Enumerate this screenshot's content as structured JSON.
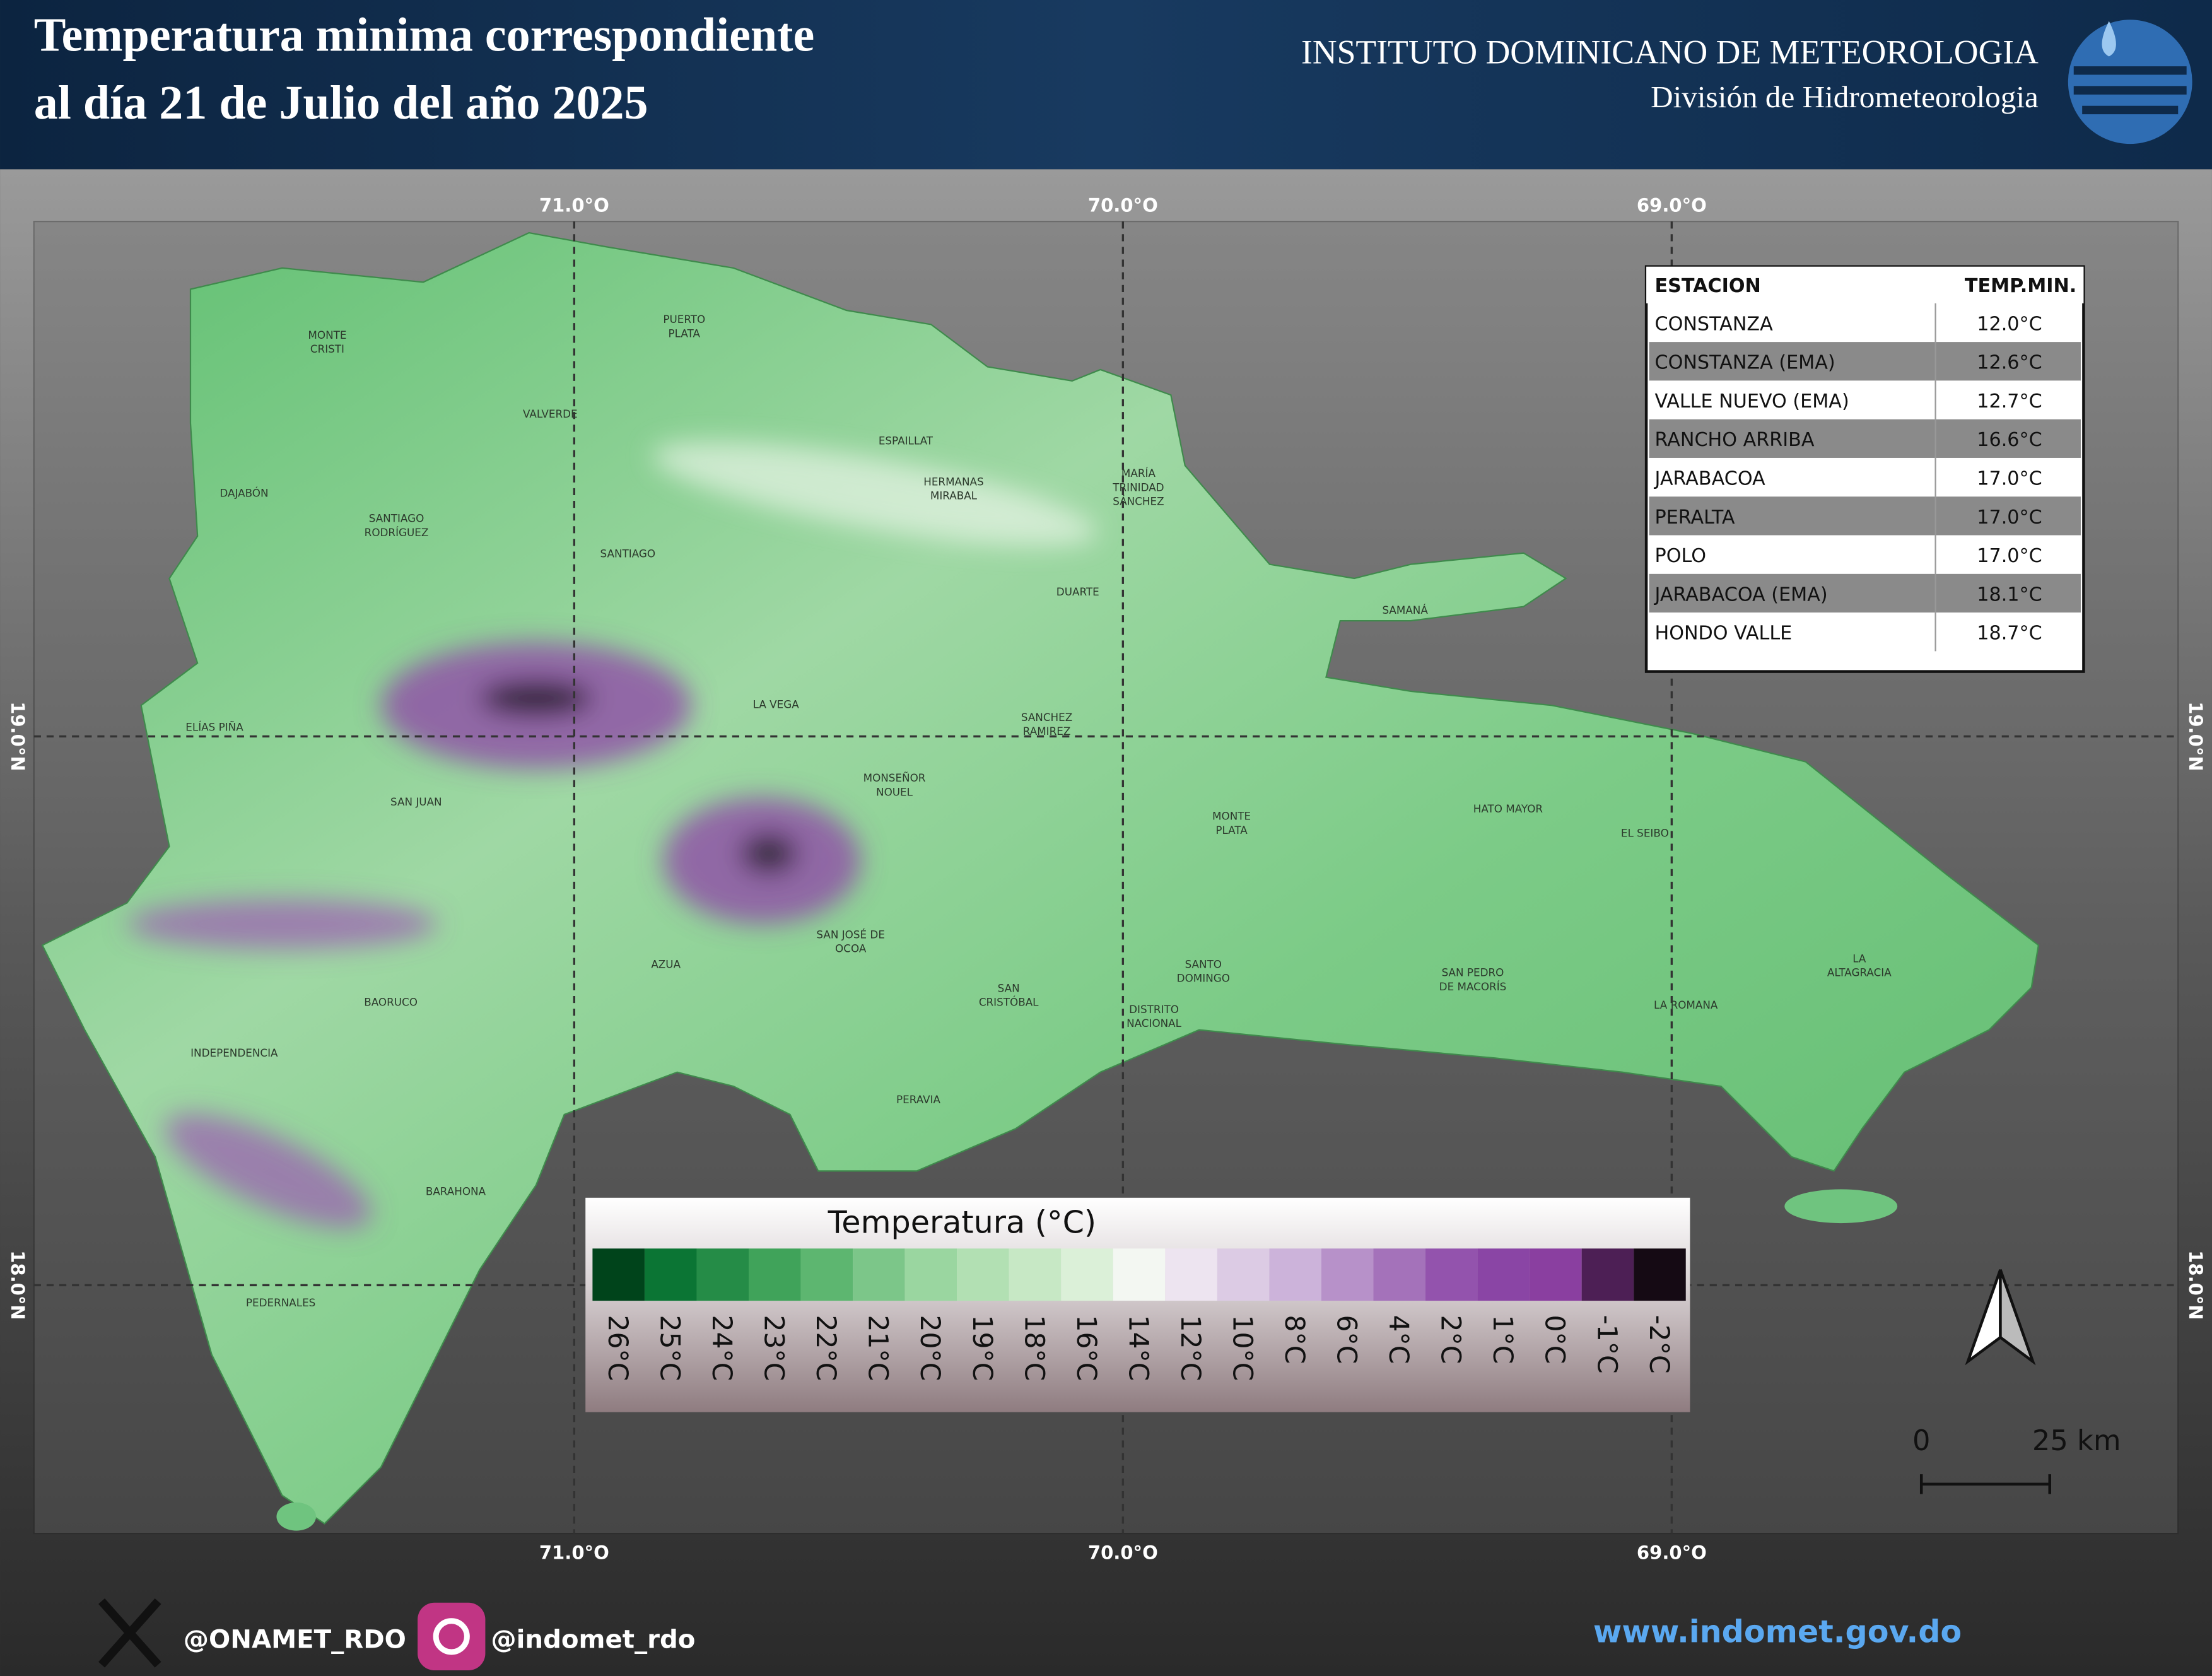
{
  "header": {
    "title_lines": [
      "Temperatura minima correspondiente",
      "al día 21 de Julio del año 2025"
    ],
    "institute": "INSTITUTO DOMINICANO DE METEOROLOGIA",
    "division": "División de Hidrometeorologia"
  },
  "map": {
    "longitudes": [
      "71.0°O",
      "70.0°O",
      "69.0°O"
    ],
    "latitudes": [
      "19.0°N",
      "18.0°N"
    ],
    "labels": [
      {
        "lines": [
          "MONTE",
          "CRISTI"
        ]
      },
      {
        "lines": [
          "PUERTO",
          "PLATA"
        ]
      },
      {
        "lines": [
          "VALVERDE"
        ]
      },
      {
        "lines": [
          "ESPAILLAT"
        ]
      },
      {
        "lines": [
          "HERMANAS",
          "MIRABAL"
        ]
      },
      {
        "lines": [
          "MARÍA",
          "TRINIDAD",
          "SÁNCHEZ"
        ]
      },
      {
        "lines": [
          "DAJABÓN"
        ]
      },
      {
        "lines": [
          "SANTIAGO",
          "RODRÍGUEZ"
        ]
      },
      {
        "lines": [
          "SANTIAGO"
        ]
      },
      {
        "lines": [
          "DUARTE"
        ]
      },
      {
        "lines": [
          "SAMANÁ"
        ]
      },
      {
        "lines": [
          "LA VEGA"
        ]
      },
      {
        "lines": [
          "SANCHEZ",
          "RAMIREZ"
        ]
      },
      {
        "lines": [
          "ELÍAS PIÑA"
        ]
      },
      {
        "lines": [
          "MONSEÑOR",
          "NOUEL"
        ]
      },
      {
        "lines": [
          "SAN JUAN"
        ]
      },
      {
        "lines": [
          "MONTE",
          "PLATA"
        ]
      },
      {
        "lines": [
          "HATO MAYOR"
        ]
      },
      {
        "lines": [
          "EL SEIBO"
        ]
      },
      {
        "lines": [
          "SAN JOSÉ DE",
          "OCOA"
        ]
      },
      {
        "lines": [
          "AZUA"
        ]
      },
      {
        "lines": [
          "SANTO",
          "DOMINGO"
        ]
      },
      {
        "lines": [
          "SAN PEDRO",
          "DE MACORÍS"
        ]
      },
      {
        "lines": [
          "LA",
          "ALTAGRACIA"
        ]
      },
      {
        "lines": [
          "SAN",
          "CRISTÓBAL"
        ]
      },
      {
        "lines": [
          "BAORUCO"
        ]
      },
      {
        "lines": [
          "LA ROMANA"
        ]
      },
      {
        "lines": [
          "DISTRITO",
          "NACIONAL"
        ]
      },
      {
        "lines": [
          "INDEPENDENCIA"
        ]
      },
      {
        "lines": [
          "PERAVIA"
        ]
      },
      {
        "lines": [
          "BARAHONA"
        ]
      },
      {
        "lines": [
          "PEDERNALES"
        ]
      }
    ]
  },
  "table": {
    "columns": [
      "ESTACION",
      "TEMP.MIN."
    ],
    "rows": [
      [
        "CONSTANZA",
        "12.0°C"
      ],
      [
        "CONSTANZA (EMA)",
        "12.6°C"
      ],
      [
        "VALLE NUEVO (EMA)",
        "12.7°C"
      ],
      [
        "RANCHO ARRIBA",
        "16.6°C"
      ],
      [
        "JARABACOA",
        "17.0°C"
      ],
      [
        "PERALTA",
        "17.0°C"
      ],
      [
        "POLO",
        "17.0°C"
      ],
      [
        "JARABACOA (EMA)",
        "18.1°C"
      ],
      [
        "HONDO VALLE",
        "18.7°C"
      ]
    ]
  },
  "legend": {
    "title": "Temperatura (°C)",
    "items": [
      {
        "label": "26°C",
        "color": "#00441b"
      },
      {
        "label": "25°C",
        "color": "#0b7534"
      },
      {
        "label": "24°C",
        "color": "#258c47"
      },
      {
        "label": "23°C",
        "color": "#40a35a"
      },
      {
        "label": "22°C",
        "color": "#5db670"
      },
      {
        "label": "21°C",
        "color": "#7cc689"
      },
      {
        "label": "20°C",
        "color": "#9ad6a0"
      },
      {
        "label": "19°C",
        "color": "#b2e0b3"
      },
      {
        "label": "18°C",
        "color": "#c7e8c5"
      },
      {
        "label": "16°C",
        "color": "#dbf0d8"
      },
      {
        "label": "14°C",
        "color": "#f3f7f2"
      },
      {
        "label": "12°C",
        "color": "#ede4f0"
      },
      {
        "label": "10°C",
        "color": "#dccbe4"
      },
      {
        "label": "8°C",
        "color": "#ccb3da"
      },
      {
        "label": "6°C",
        "color": "#b791c9"
      },
      {
        "label": "4°C",
        "color": "#a472ba"
      },
      {
        "label": "2°C",
        "color": "#9353ad"
      },
      {
        "label": "1°C",
        "color": "#8a45a5"
      },
      {
        "label": "0°C",
        "color": "#8a3fa0"
      },
      {
        "label": "-1°C",
        "color": "#4d1f55"
      },
      {
        "label": "-2°C",
        "color": "#150a14"
      }
    ]
  },
  "scale_bar": {
    "start": "0",
    "end": "25 km"
  },
  "footer": {
    "twitter": "@ONAMET_RDO",
    "instagram": "@indomet_rdo",
    "website": "www.indomet.gov.do"
  }
}
